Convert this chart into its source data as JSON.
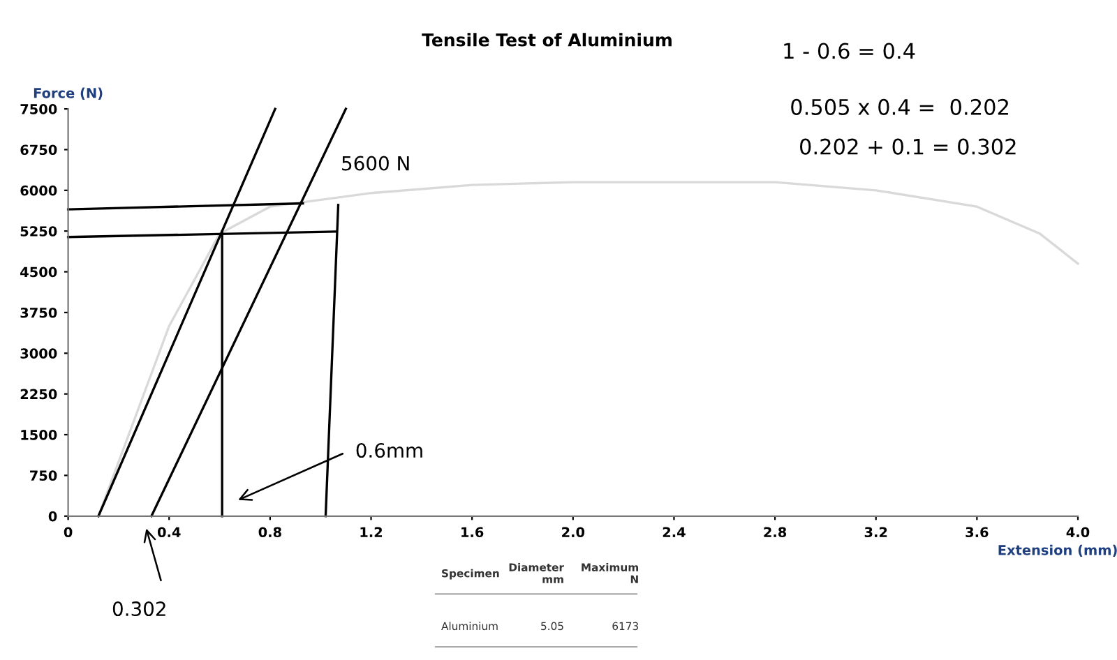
{
  "chart_data": {
    "type": "line",
    "title": "Tensile Test of Aluminium",
    "xlabel": "Extension (mm)",
    "ylabel": "Force (N)",
    "xlim": [
      0,
      4.0
    ],
    "ylim": [
      0,
      7500
    ],
    "xticks": [
      0,
      0.4,
      0.8,
      1.2,
      1.6,
      {
        "value": 2.0,
        "label": "2.0"
      },
      2.4,
      2.8,
      3.2,
      3.6,
      {
        "value": 4.0,
        "label": "4.0"
      }
    ],
    "yticks": [
      0,
      750,
      1500,
      2250,
      3000,
      3750,
      4500,
      5250,
      6000,
      6750,
      7500
    ],
    "grid": false,
    "legend": false,
    "marker": "none",
    "line_style": "solid",
    "series": [
      {
        "color": "#d9d9d9",
        "x": [
          0.12,
          0.4,
          0.6,
          0.8,
          1.2,
          1.6,
          2.0,
          2.4,
          2.8,
          3.2,
          3.6,
          3.85,
          4.0
        ],
        "values": [
          0,
          3500,
          5200,
          5700,
          5950,
          6100,
          6150,
          6150,
          6150,
          6000,
          5700,
          5200,
          4650
        ]
      },
      {
        "color": "#000000",
        "x": [
          0.12,
          0.82
        ],
        "values": [
          0,
          7500
        ]
      },
      {
        "color": "#000000",
        "x": [
          0.33,
          1.1
        ],
        "values": [
          0,
          7500
        ]
      },
      {
        "color": "#000000",
        "x": [
          0,
          0.93
        ],
        "values": [
          5650,
          5760
        ]
      },
      {
        "color": "#000000",
        "x": [
          0,
          1.06
        ],
        "values": [
          5140,
          5240
        ]
      },
      {
        "color": "#000000",
        "x": [
          0.61,
          0.61
        ],
        "values": [
          0,
          5240
        ]
      },
      {
        "color": "#000000",
        "x": [
          1.02,
          1.07
        ],
        "values": [
          0,
          5730
        ]
      }
    ],
    "annotations": [
      "5600 N",
      "0.6mm",
      "0.302",
      "1 - 0.6 = 0.4",
      "0.505 x 0.4 =  0.202",
      "0.202 + 0.1 = 0.302",
      "Specimen",
      "Diameter\nmm",
      "Maximum\nN",
      "Aluminium",
      "5.05",
      "6173"
    ]
  }
}
